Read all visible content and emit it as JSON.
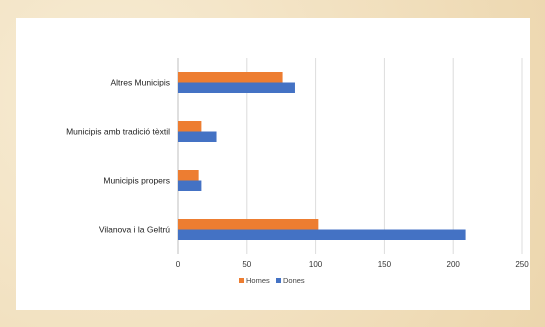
{
  "chart_data": {
    "type": "bar",
    "orientation": "horizontal",
    "title": "",
    "xlabel": "",
    "ylabel": "",
    "categories": [
      "Altres Municipis",
      "Municipis amb tradició tèxtil",
      "Municipis propers",
      "Vilanova i la Geltrú"
    ],
    "series": [
      {
        "name": "Homes",
        "color": "#ed7d31",
        "values": [
          76,
          17,
          15,
          102
        ]
      },
      {
        "name": "Dones",
        "color": "#4472c4",
        "values": [
          85,
          28,
          17,
          209
        ]
      }
    ],
    "xlim": [
      0,
      250
    ],
    "xticks": [
      "0",
      "50",
      "100",
      "150",
      "200",
      "250"
    ],
    "grid": true,
    "legend_position": "bottom"
  }
}
